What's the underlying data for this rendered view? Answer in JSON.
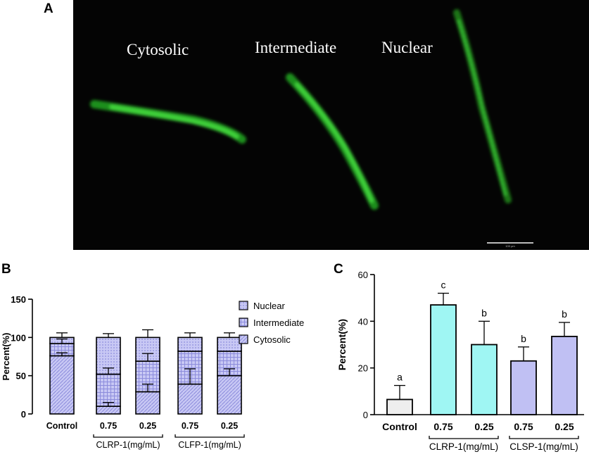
{
  "panels": {
    "a": "A",
    "b": "B",
    "c": "C"
  },
  "micrograph": {
    "labels": [
      "Cytosolic",
      "Intermediate",
      "Nuclear"
    ],
    "scale_bar_text": "100 μm",
    "colors": {
      "background": "#040404",
      "fluorescence": "#3fd23a"
    }
  },
  "chart_data": [
    {
      "type": "bar",
      "stacked": true,
      "title": "",
      "xlabel": "",
      "ylabel": "Percent(%)",
      "ylim": [
        0,
        150
      ],
      "yticks": [
        0,
        50,
        100,
        150
      ],
      "categories": [
        "Control",
        "0.75",
        "0.25",
        "0.75",
        "0.25"
      ],
      "groups": [
        {
          "label": "CLRP-1(mg/mL)",
          "categories": [
            1,
            2
          ]
        },
        {
          "label": "CLFP-1(mg/mL)",
          "categories": [
            3,
            4
          ]
        }
      ],
      "legend_position": "top-right",
      "series": [
        {
          "name": "Cytosolic",
          "values": [
            76,
            10,
            29,
            39,
            50
          ],
          "errors": [
            4,
            5,
            10,
            20,
            9
          ]
        },
        {
          "name": "Intermediate",
          "values": [
            16,
            42,
            40,
            43,
            32
          ],
          "errors": [
            6,
            8,
            10,
            0,
            0
          ]
        },
        {
          "name": "Nuclear",
          "values": [
            8,
            48,
            31,
            18,
            18
          ],
          "errors": [
            6,
            5,
            10,
            6,
            6
          ]
        }
      ],
      "colors": {
        "fill": "#c8c8f4",
        "pattern": "#8c8cdc",
        "edge": "#000000"
      }
    },
    {
      "type": "bar",
      "title": "",
      "xlabel": "",
      "ylabel": "Percent(%)",
      "ylim": [
        0,
        60
      ],
      "yticks": [
        0,
        20,
        40,
        60
      ],
      "categories": [
        "Control",
        "0.75",
        "0.25",
        "0.75",
        "0.25"
      ],
      "groups": [
        {
          "label": "CLRP-1(mg/mL)",
          "categories": [
            1,
            2
          ]
        },
        {
          "label": "CLSP-1(mg/mL)",
          "categories": [
            3,
            4
          ]
        }
      ],
      "values": [
        6.5,
        47,
        30,
        23,
        33.5
      ],
      "errors": [
        6,
        5,
        10,
        6,
        6
      ],
      "significance": [
        "a",
        "c",
        "b",
        "b",
        "b"
      ],
      "colors": [
        "#eeeeee",
        "#9ff6f3",
        "#9ff6f3",
        "#c0c0f3",
        "#c0c0f3"
      ]
    }
  ]
}
